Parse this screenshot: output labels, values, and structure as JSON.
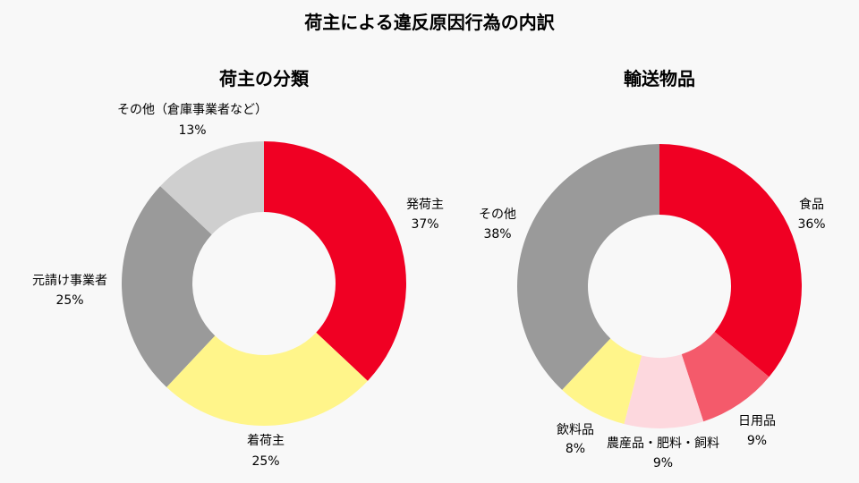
{
  "page": {
    "title": "荷主による違反原因行為の内訳"
  },
  "chart_data": [
    {
      "type": "pie",
      "title": "荷主の分類",
      "unit": "%",
      "slices": [
        {
          "label": "発荷主",
          "value": 37,
          "display": "37%",
          "color": "#f00023"
        },
        {
          "label": "着荷主",
          "value": 25,
          "display": "25%",
          "color": "#fff58a"
        },
        {
          "label": "元請け事業者",
          "value": 25,
          "display": "25%",
          "color": "#9a9a9a"
        },
        {
          "label": "その他（倉庫事業者など）",
          "value": 13,
          "display": "13%",
          "color": "#cfcfcf"
        }
      ]
    },
    {
      "type": "pie",
      "title": "輸送物品",
      "unit": "%",
      "slices": [
        {
          "label": "食品",
          "value": 36,
          "display": "36%",
          "color": "#f00023"
        },
        {
          "label": "日用品",
          "value": 9,
          "display": "9%",
          "color": "#f45a6b"
        },
        {
          "label": "農産品・肥料・飼料",
          "value": 9,
          "display": "9%",
          "color": "#fdd8de"
        },
        {
          "label": "飲料品",
          "value": 8,
          "display": "8%",
          "color": "#fff58a"
        },
        {
          "label": "その他",
          "value": 38,
          "display": "38%",
          "color": "#9a9a9a"
        }
      ]
    }
  ]
}
